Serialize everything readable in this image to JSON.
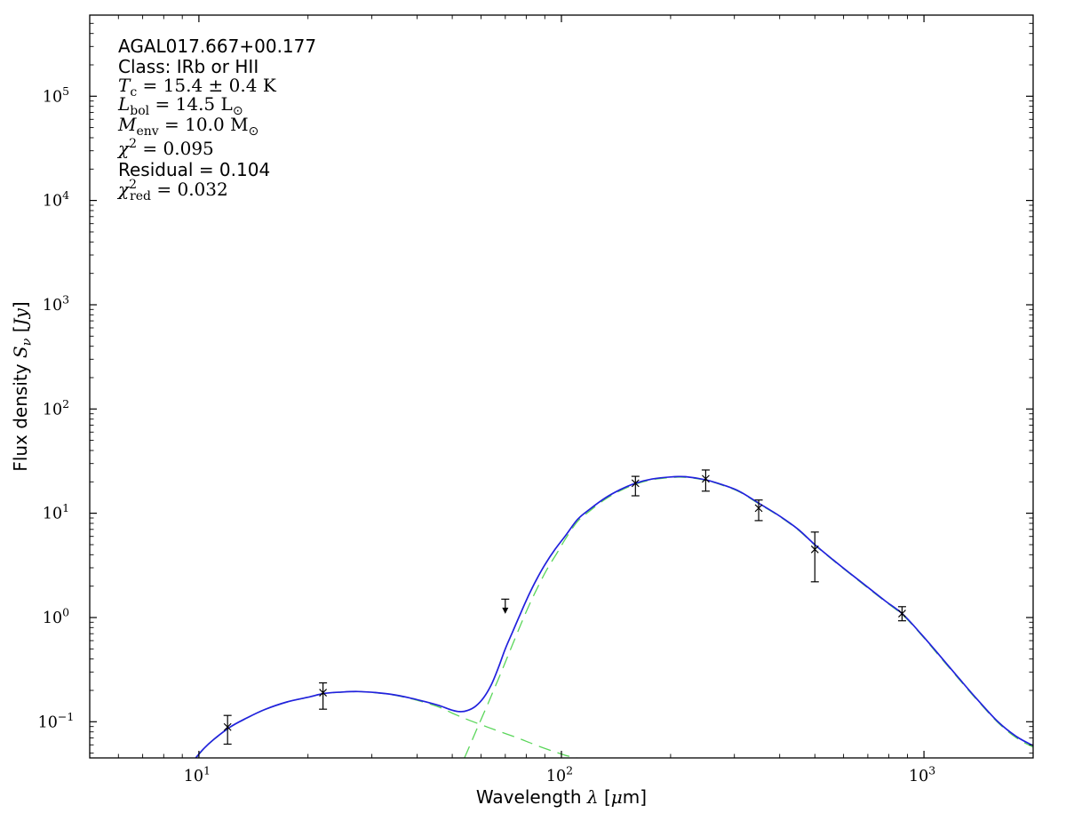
{
  "chart_data": {
    "type": "line+scatter",
    "xscale": "log",
    "yscale": "log",
    "xlim": [
      5,
      2000
    ],
    "ylim": [
      0.045,
      600000
    ],
    "x_major_ticks": [
      {
        "value": 10,
        "exp": 1
      },
      {
        "value": 100,
        "exp": 2
      },
      {
        "value": 1000,
        "exp": 3
      }
    ],
    "y_major_ticks": [
      {
        "value": 0.1,
        "exp": -1
      },
      {
        "value": 1,
        "exp": 0
      },
      {
        "value": 10,
        "exp": 1
      },
      {
        "value": 100,
        "exp": 2
      },
      {
        "value": 1000,
        "exp": 3
      },
      {
        "value": 10000,
        "exp": 4
      },
      {
        "value": 100000,
        "exp": 5
      }
    ],
    "xlabel_parts": [
      {
        "t": "Wavelength ",
        "f": "sans"
      },
      {
        "t": "λ",
        "f": "mathit"
      },
      {
        "t": " [",
        "f": "sans"
      },
      {
        "t": "μ",
        "f": "mathit"
      },
      {
        "t": "m]",
        "f": "sans"
      }
    ],
    "ylabel_parts": [
      {
        "t": "Flux density ",
        "f": "sans"
      },
      {
        "t": "S",
        "f": "mathit"
      },
      {
        "t": "ν",
        "f": "mathit",
        "sub": 1
      },
      {
        "t": " [",
        "f": "sans"
      },
      {
        "t": "Jy",
        "f": "mathit"
      },
      {
        "t": "]",
        "f": "sans"
      }
    ],
    "annotation_lines": [
      {
        "font": "sans",
        "segs": [
          {
            "t": "AGAL017.667+00.177"
          }
        ]
      },
      {
        "font": "sans",
        "segs": [
          {
            "t": "Class: IRb or HII"
          }
        ]
      },
      {
        "font": "math",
        "segs": [
          {
            "t": "T",
            "i": 1
          },
          {
            "t": "c",
            "sub": 1
          },
          {
            "t": " = 15.4 ± 0.4 K"
          }
        ]
      },
      {
        "font": "math",
        "segs": [
          {
            "t": "L",
            "i": 1
          },
          {
            "t": "bol",
            "sub": 1
          },
          {
            "t": " = 14.5 L"
          },
          {
            "t": "⊙",
            "sub": 1,
            "sans": 1
          }
        ]
      },
      {
        "font": "math",
        "segs": [
          {
            "t": "M",
            "i": 1
          },
          {
            "t": "env",
            "sub": 1
          },
          {
            "t": " = 10.0 M"
          },
          {
            "t": "⊙",
            "sub": 1,
            "sans": 1
          }
        ]
      },
      {
        "font": "math",
        "segs": [
          {
            "t": "χ",
            "i": 1
          },
          {
            "t": "2",
            "sup": 1
          },
          {
            "t": " = 0.095"
          }
        ]
      },
      {
        "font": "sans",
        "segs": [
          {
            "t": "Residual = 0.104"
          }
        ]
      },
      {
        "font": "math",
        "segs": [
          {
            "t": "χ",
            "i": 1
          },
          {
            "t": "2",
            "sup": 1
          },
          {
            "t": "red",
            "sub": 1,
            "stack": 1
          },
          {
            "t": " = 0.032"
          }
        ]
      }
    ],
    "colors": {
      "model_total": "#2121dd",
      "model_component": "#5ad65a",
      "data": "#000000",
      "axes": "#000000"
    },
    "series": [
      {
        "name": "component-warm-greybody",
        "style": "dashed",
        "points": [
          [
            9.8,
            0.0445
          ],
          [
            10.3,
            0.0545
          ],
          [
            11,
            0.0675
          ],
          [
            12.2,
            0.0885
          ],
          [
            13.5,
            0.1075
          ],
          [
            15.2,
            0.1305
          ],
          [
            17.5,
            0.1545
          ],
          [
            20,
            0.1715
          ],
          [
            22.2,
            0.1865
          ],
          [
            25,
            0.1925
          ],
          [
            27.5,
            0.1945
          ],
          [
            30.5,
            0.19
          ],
          [
            34,
            0.182
          ],
          [
            38,
            0.168
          ],
          [
            42,
            0.153
          ],
          [
            46,
            0.138
          ],
          [
            50,
            0.121
          ],
          [
            54,
            0.108
          ],
          [
            58,
            0.098
          ],
          [
            63,
            0.088
          ],
          [
            68,
            0.08
          ],
          [
            74,
            0.072
          ],
          [
            80,
            0.065
          ],
          [
            87,
            0.058
          ],
          [
            95,
            0.052
          ],
          [
            104,
            0.047
          ],
          [
            112,
            0.0445
          ]
        ]
      },
      {
        "name": "component-cool-greybody",
        "style": "dashed",
        "points": [
          [
            54,
            0.045
          ],
          [
            56,
            0.06
          ],
          [
            58,
            0.08
          ],
          [
            60,
            0.105
          ],
          [
            62.5,
            0.145
          ],
          [
            65,
            0.2
          ],
          [
            68,
            0.29
          ],
          [
            71,
            0.42
          ],
          [
            74.5,
            0.63
          ],
          [
            78,
            0.93
          ],
          [
            82,
            1.38
          ],
          [
            86,
            1.95
          ],
          [
            91,
            2.85
          ],
          [
            97,
            4.1
          ],
          [
            103,
            5.8
          ],
          [
            111,
            8.4
          ],
          [
            120,
            10.6
          ],
          [
            132,
            13.6
          ],
          [
            145,
            16.4
          ],
          [
            160,
            19
          ],
          [
            178,
            21
          ],
          [
            200,
            22
          ],
          [
            220,
            22.1
          ],
          [
            250,
            20.7
          ],
          [
            280,
            18.4
          ],
          [
            310,
            16
          ],
          [
            350,
            12.35
          ],
          [
            400,
            9.3
          ],
          [
            450,
            6.9
          ],
          [
            500,
            4.95
          ],
          [
            560,
            3.56
          ],
          [
            630,
            2.57
          ],
          [
            700,
            1.92
          ],
          [
            780,
            1.43
          ],
          [
            873,
            1.06
          ],
          [
            980,
            0.69
          ],
          [
            1100,
            0.43
          ],
          [
            1250,
            0.255
          ],
          [
            1400,
            0.162
          ],
          [
            1600,
            0.098
          ],
          [
            1800,
            0.07
          ],
          [
            2000,
            0.057
          ]
        ]
      },
      {
        "name": "model-total-fit",
        "style": "solid",
        "points": [
          [
            9.8,
            0.045
          ],
          [
            10.3,
            0.055
          ],
          [
            11,
            0.068
          ],
          [
            12.2,
            0.089
          ],
          [
            13.5,
            0.108
          ],
          [
            15.2,
            0.131
          ],
          [
            17.5,
            0.155
          ],
          [
            20,
            0.172
          ],
          [
            22.2,
            0.187
          ],
          [
            25,
            0.193
          ],
          [
            27.5,
            0.195
          ],
          [
            30.5,
            0.191
          ],
          [
            34,
            0.183
          ],
          [
            38,
            0.17
          ],
          [
            42,
            0.156
          ],
          [
            46,
            0.143
          ],
          [
            50,
            0.129
          ],
          [
            52.5,
            0.125
          ],
          [
            55,
            0.128
          ],
          [
            58,
            0.141
          ],
          [
            61,
            0.17
          ],
          [
            64,
            0.225
          ],
          [
            67,
            0.33
          ],
          [
            70,
            0.5
          ],
          [
            73.5,
            0.74
          ],
          [
            77,
            1.08
          ],
          [
            81,
            1.6
          ],
          [
            85,
            2.25
          ],
          [
            90,
            3.2
          ],
          [
            96,
            4.5
          ],
          [
            103,
            6.2
          ],
          [
            111,
            8.8
          ],
          [
            120,
            11
          ],
          [
            132,
            14
          ],
          [
            145,
            16.8
          ],
          [
            160,
            19.4
          ],
          [
            178,
            21.3
          ],
          [
            200,
            22.3
          ],
          [
            220,
            22.4
          ],
          [
            250,
            20.9
          ],
          [
            280,
            18.6
          ],
          [
            310,
            16.2
          ],
          [
            350,
            12.5
          ],
          [
            400,
            9.4
          ],
          [
            450,
            7
          ],
          [
            500,
            5
          ],
          [
            560,
            3.6
          ],
          [
            630,
            2.6
          ],
          [
            700,
            1.95
          ],
          [
            780,
            1.45
          ],
          [
            873,
            1.08
          ],
          [
            980,
            0.7
          ],
          [
            1100,
            0.44
          ],
          [
            1250,
            0.26
          ],
          [
            1400,
            0.165
          ],
          [
            1600,
            0.1
          ],
          [
            1800,
            0.072
          ],
          [
            2000,
            0.059
          ]
        ]
      }
    ],
    "data_points": [
      {
        "lambda": 12,
        "flux": 0.089,
        "flux_hi": 0.115,
        "flux_lo": 0.061
      },
      {
        "lambda": 22,
        "flux": 0.19,
        "flux_hi": 0.236,
        "flux_lo": 0.132
      },
      {
        "lambda": 160,
        "flux": 19.4,
        "flux_hi": 22.6,
        "flux_lo": 14.7
      },
      {
        "lambda": 250,
        "flux": 21.4,
        "flux_hi": 26.0,
        "flux_lo": 16.3
      },
      {
        "lambda": 350,
        "flux": 11.2,
        "flux_hi": 13.4,
        "flux_lo": 8.5
      },
      {
        "lambda": 500,
        "flux": 4.5,
        "flux_hi": 6.6,
        "flux_lo": 2.2
      },
      {
        "lambda": 870,
        "flux": 1.09,
        "flux_hi": 1.27,
        "flux_lo": 0.93
      }
    ],
    "upper_limits": [
      {
        "lambda": 70,
        "flux": 1.5,
        "arrow_end": 1.22
      }
    ],
    "marker": {
      "type": "x",
      "size": 4
    }
  }
}
